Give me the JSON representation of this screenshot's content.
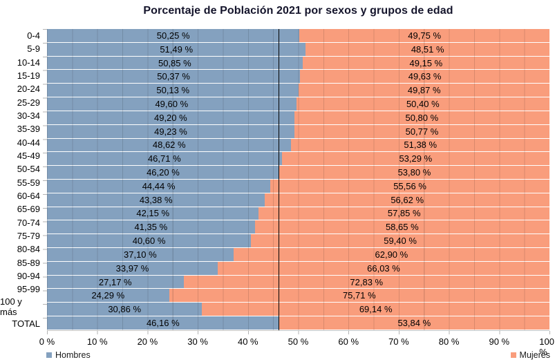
{
  "title": "Porcentaje de Población 2021 por sexos y grupos de edad",
  "legend": {
    "hombres": "Hombres",
    "mujeres": "Mujeres"
  },
  "colors": {
    "hombres_fill": "#84A1BF",
    "mujeres_fill": "#F99D7C",
    "grid_line": "rgba(0,0,0,0.13)",
    "mean_line": "#000000",
    "axis_tick": "#b3b3b3",
    "title_text": "#14142B"
  },
  "chart_data": {
    "type": "bar",
    "orientation": "horizontal_stacked",
    "title": "Porcentaje de Población 2021 por sexos y grupos de edad",
    "categories": [
      "0-4",
      "5-9",
      "10-14",
      "15-19",
      "20-24",
      "25-29",
      "30-34",
      "35-39",
      "40-44",
      "45-49",
      "50-54",
      "55-59",
      "60-64",
      "65-69",
      "70-74",
      "75-79",
      "80-84",
      "85-89",
      "90-94",
      "95-99",
      "100 y más",
      "TOTAL"
    ],
    "series": [
      {
        "name": "Hombres",
        "values": [
          50.25,
          51.49,
          50.85,
          50.37,
          50.13,
          49.6,
          49.2,
          49.23,
          48.62,
          46.71,
          46.2,
          44.44,
          43.38,
          42.15,
          41.35,
          40.6,
          37.1,
          33.97,
          27.17,
          24.29,
          30.86,
          46.16
        ],
        "labels": [
          "50,25 %",
          "51,49 %",
          "50,85 %",
          "50,37 %",
          "50,13 %",
          "49,60 %",
          "49,20 %",
          "49,23 %",
          "48,62 %",
          "46,71 %",
          "46,20 %",
          "44,44 %",
          "43,38 %",
          "42,15 %",
          "41,35 %",
          "40,60 %",
          "37,10 %",
          "33,97 %",
          "27,17 %",
          "24,29 %",
          "30,86 %",
          "46,16 %"
        ]
      },
      {
        "name": "Mujeres",
        "values": [
          49.75,
          48.51,
          49.15,
          49.63,
          49.87,
          50.4,
          50.8,
          50.77,
          51.38,
          53.29,
          53.8,
          55.56,
          56.62,
          57.85,
          58.65,
          59.4,
          62.9,
          66.03,
          72.83,
          75.71,
          69.14,
          53.84
        ],
        "labels": [
          "49,75 %",
          "48,51 %",
          "49,15 %",
          "49,63 %",
          "49,87 %",
          "50,40 %",
          "50,80 %",
          "50,77 %",
          "51,38 %",
          "53,29 %",
          "53,80 %",
          "55,56 %",
          "56,62 %",
          "57,85 %",
          "58,65 %",
          "59,40 %",
          "62,90 %",
          "66,03 %",
          "72,83 %",
          "75,71 %",
          "69,14 %",
          "53,84 %"
        ]
      }
    ],
    "x_ticks": [
      "0 %",
      "10 %",
      "20 %",
      "30 %",
      "40 %",
      "50 %",
      "60 %",
      "70 %",
      "80 %",
      "90 %",
      "100 %"
    ],
    "xlim": [
      0,
      100
    ],
    "grid": "vertical minor gridlines every 5%",
    "legend_position": "bottom",
    "reference_line": {
      "value": 46.16,
      "color": "#000000"
    }
  }
}
